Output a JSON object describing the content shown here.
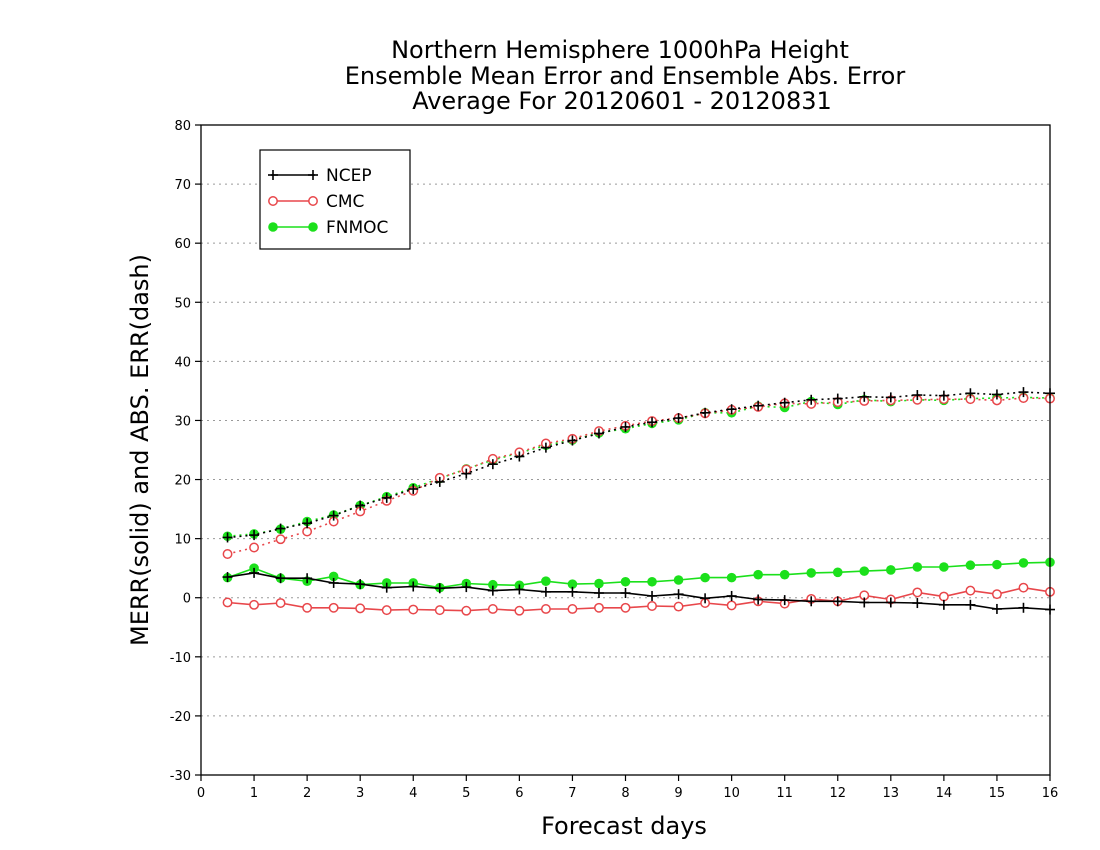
{
  "chart_data": {
    "type": "line",
    "title": [
      "Northern Hemisphere 1000hPa Height",
      "Ensemble Mean Error and Ensemble Abs. Error",
      "Average For 20120601 - 20120831"
    ],
    "xlabel": "Forecast days",
    "ylabel": "MERR(solid) and ABS. ERR(dash)",
    "xlim": [
      0,
      16
    ],
    "ylim": [
      -30,
      80
    ],
    "xticks": [
      0,
      1,
      2,
      3,
      4,
      5,
      6,
      7,
      8,
      9,
      10,
      11,
      12,
      13,
      14,
      15,
      16
    ],
    "yticks": [
      -30,
      -20,
      -10,
      0,
      10,
      20,
      30,
      40,
      50,
      60,
      70,
      80
    ],
    "grid": "horizontal dotted",
    "legend_position": "top-left",
    "x": [
      0.5,
      1,
      1.5,
      2,
      2.5,
      3,
      3.5,
      4,
      4.5,
      5,
      5.5,
      6,
      6.5,
      7,
      7.5,
      8,
      8.5,
      9,
      9.5,
      10,
      10.5,
      11,
      11.5,
      12,
      12.5,
      13,
      13.5,
      14,
      14.5,
      15,
      15.5,
      16
    ],
    "series": [
      {
        "name": "NCEP",
        "color": "#000000",
        "marker": "plus",
        "merr": [
          3.5,
          4.2,
          3.3,
          3.3,
          2.5,
          2.3,
          1.7,
          1.9,
          1.6,
          1.8,
          1.2,
          1.4,
          1.0,
          1.0,
          0.8,
          0.8,
          0.3,
          0.6,
          -0.1,
          0.3,
          -0.3,
          -0.4,
          -0.6,
          -0.6,
          -0.8,
          -0.8,
          -0.9,
          -1.2,
          -1.2,
          -1.9,
          -1.7,
          -2.0
        ],
        "abs_err": [
          10.2,
          10.6,
          11.7,
          12.6,
          13.9,
          15.6,
          16.9,
          18.4,
          19.6,
          21.0,
          22.6,
          23.9,
          25.4,
          26.6,
          27.8,
          28.9,
          29.7,
          30.4,
          31.3,
          31.9,
          32.5,
          33.0,
          33.5,
          33.7,
          34.0,
          33.9,
          34.3,
          34.2,
          34.6,
          34.4,
          34.8,
          34.6
        ]
      },
      {
        "name": "CMC",
        "color": "#e8474b",
        "marker": "open-circle",
        "merr": [
          -0.8,
          -1.2,
          -0.9,
          -1.7,
          -1.7,
          -1.8,
          -2.1,
          -2.0,
          -2.1,
          -2.2,
          -1.9,
          -2.2,
          -1.9,
          -1.9,
          -1.7,
          -1.7,
          -1.4,
          -1.5,
          -0.9,
          -1.3,
          -0.6,
          -1.0,
          -0.2,
          -0.6,
          0.4,
          -0.3,
          0.9,
          0.2,
          1.2,
          0.6,
          1.7,
          1.0
        ],
        "abs_err": [
          7.4,
          8.5,
          9.9,
          11.2,
          12.9,
          14.6,
          16.4,
          18.1,
          20.3,
          21.7,
          23.5,
          24.6,
          26.1,
          26.9,
          28.2,
          29.1,
          29.9,
          30.4,
          31.2,
          31.8,
          32.3,
          32.9,
          32.8,
          33.1,
          33.3,
          33.4,
          33.5,
          33.6,
          33.6,
          33.4,
          33.8,
          33.7
        ]
      },
      {
        "name": "FNMOC",
        "color": "#1be01b",
        "marker": "filled-circle",
        "merr": [
          3.4,
          5.0,
          3.3,
          2.8,
          3.6,
          2.2,
          2.5,
          2.5,
          1.7,
          2.4,
          2.2,
          2.1,
          2.8,
          2.3,
          2.4,
          2.7,
          2.7,
          3.0,
          3.4,
          3.4,
          3.9,
          3.9,
          4.2,
          4.3,
          4.5,
          4.7,
          5.2,
          5.2,
          5.5,
          5.6,
          5.9,
          6.0
        ],
        "abs_err": [
          10.4,
          10.8,
          11.6,
          12.9,
          14.0,
          15.6,
          17.1,
          18.6,
          20.2,
          21.8,
          23.3,
          24.5,
          25.8,
          26.7,
          27.9,
          28.6,
          29.5,
          30.1,
          31.3,
          31.3,
          32.4,
          32.2,
          33.2,
          32.7,
          33.5,
          33.2,
          33.5,
          33.4,
          33.7,
          33.8,
          33.9,
          33.8
        ]
      }
    ]
  }
}
